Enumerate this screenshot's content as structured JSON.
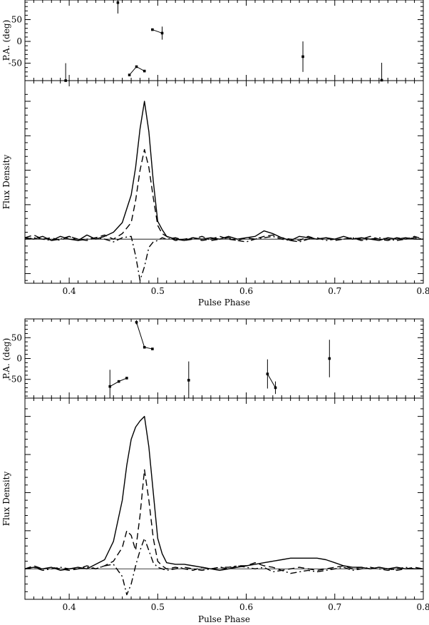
{
  "chart_data": [
    {
      "type": "line",
      "title": "",
      "xlabel": "Pulse Phase",
      "xlim": [
        0.35,
        0.8
      ],
      "x_ticks": [
        "0.4",
        "0.5",
        "0.6",
        "0.7",
        "0.8"
      ],
      "pa_panel": {
        "ylabel": "P.A. (deg)",
        "ylim": [
          -90,
          95
        ],
        "y_ticks": [
          "50",
          "0",
          "-50"
        ],
        "groups": [
          [
            {
              "x": 0.396,
              "y": -90,
              "err": 40
            }
          ],
          [
            {
              "x": 0.455,
              "y": 89,
              "err": 25
            }
          ],
          [
            {
              "x": 0.468,
              "y": -77,
              "err": 0
            },
            {
              "x": 0.476,
              "y": -58,
              "err": 0
            },
            {
              "x": 0.485,
              "y": -68,
              "err": 0
            }
          ],
          [
            {
              "x": 0.494,
              "y": 27,
              "err": 0
            },
            {
              "x": 0.505,
              "y": 19,
              "err": 15
            }
          ],
          [
            {
              "x": 0.664,
              "y": -35,
              "err": 35
            }
          ],
          [
            {
              "x": 0.753,
              "y": -89,
              "err": 40
            }
          ]
        ]
      },
      "flux_panel": {
        "ylabel": "Flux Density",
        "ylim": [
          -0.32,
          1.15
        ],
        "series": [
          {
            "style": "solid",
            "x": [
              0.35,
              0.36,
              0.37,
              0.38,
              0.39,
              0.4,
              0.41,
              0.42,
              0.43,
              0.44,
              0.45,
              0.46,
              0.47,
              0.475,
              0.48,
              0.485,
              0.49,
              0.495,
              0.5,
              0.505,
              0.51,
              0.52,
              0.53,
              0.54,
              0.55,
              0.56,
              0.57,
              0.58,
              0.59,
              0.6,
              0.61,
              0.62,
              0.63,
              0.64,
              0.65,
              0.66,
              0.67,
              0.68,
              0.69,
              0.7,
              0.71,
              0.72,
              0.73,
              0.74,
              0.75,
              0.76,
              0.77,
              0.78,
              0.79,
              0.8
            ],
            "y": [
              0.01,
              0,
              0.02,
              -0.01,
              0.02,
              0,
              -0.01,
              0.03,
              0,
              0.02,
              0.05,
              0.12,
              0.32,
              0.52,
              0.8,
              1.0,
              0.78,
              0.42,
              0.13,
              0.07,
              0.02,
              0,
              -0.01,
              0.01,
              0,
              0.01,
              0,
              0.02,
              0,
              0.01,
              0.02,
              0.06,
              0.04,
              0.01,
              -0.01,
              0.02,
              0.01,
              0,
              0.01,
              0,
              0.02,
              0,
              0.01,
              0,
              -0.01,
              0.01,
              0,
              0.01,
              0,
              0
            ]
          },
          {
            "style": "dashed",
            "x": [
              0.35,
              0.36,
              0.37,
              0.38,
              0.39,
              0.4,
              0.41,
              0.42,
              0.43,
              0.44,
              0.45,
              0.46,
              0.47,
              0.475,
              0.48,
              0.485,
              0.49,
              0.495,
              0.5,
              0.505,
              0.51,
              0.52,
              0.53,
              0.54,
              0.55,
              0.56,
              0.57,
              0.58,
              0.59,
              0.6,
              0.61,
              0.62,
              0.63,
              0.64,
              0.65,
              0.66,
              0.67,
              0.68,
              0.69,
              0.7,
              0.71,
              0.72,
              0.73,
              0.74,
              0.75,
              0.76,
              0.77,
              0.78,
              0.79,
              0.8
            ],
            "y": [
              0.01,
              0.03,
              0,
              0.01,
              -0.01,
              0.02,
              0,
              -0.01,
              0.01,
              0.03,
              0,
              0.04,
              0.12,
              0.28,
              0.5,
              0.65,
              0.52,
              0.3,
              0.1,
              0.04,
              0.02,
              -0.01,
              0,
              0.01,
              -0.01,
              0,
              0.02,
              0,
              -0.01,
              0.01,
              0,
              0.02,
              0.03,
              0.01,
              0,
              -0.01,
              0.02,
              0,
              0.01,
              -0.01,
              0,
              0.01,
              0,
              0.02,
              0,
              -0.01,
              0.01,
              0,
              0.02,
              0
            ]
          },
          {
            "style": "dashdot",
            "x": [
              0.35,
              0.36,
              0.37,
              0.38,
              0.39,
              0.4,
              0.41,
              0.42,
              0.43,
              0.44,
              0.45,
              0.46,
              0.47,
              0.475,
              0.48,
              0.485,
              0.49,
              0.495,
              0.5,
              0.505,
              0.51,
              0.52,
              0.53,
              0.54,
              0.55,
              0.56,
              0.57,
              0.58,
              0.59,
              0.6,
              0.61,
              0.62,
              0.63,
              0.64,
              0.65,
              0.66,
              0.67,
              0.68,
              0.69,
              0.7,
              0.71,
              0.72,
              0.73,
              0.74,
              0.75,
              0.76,
              0.77,
              0.78,
              0.79,
              0.8
            ],
            "y": [
              0,
              0.01,
              0,
              -0.01,
              0,
              0.02,
              -0.01,
              0,
              0.01,
              0,
              -0.02,
              0.01,
              0.02,
              -0.12,
              -0.3,
              -0.2,
              -0.06,
              -0.02,
              -0.01,
              0.01,
              0,
              0.01,
              -0.01,
              0,
              0.02,
              -0.01,
              0,
              0.01,
              -0.01,
              -0.02,
              0,
              0.01,
              0.02,
              0,
              -0.01,
              -0.02,
              0,
              0.01,
              -0.01,
              0,
              0,
              0.01,
              -0.01,
              0,
              0.01,
              0,
              -0.01,
              0,
              0.01,
              0
            ]
          }
        ]
      }
    },
    {
      "type": "line",
      "title": "",
      "xlabel": "Pulse Phase",
      "xlim": [
        0.35,
        0.8
      ],
      "x_ticks": [
        "0.4",
        "0.5",
        "0.6",
        "0.7",
        "0.8"
      ],
      "pa_panel": {
        "ylabel": "P.A. (deg)",
        "ylim": [
          -95,
          95
        ],
        "y_ticks": [
          "50",
          "0",
          "-50"
        ],
        "groups": [
          [
            {
              "x": 0.446,
              "y": -67,
              "err": 40
            },
            {
              "x": 0.456,
              "y": -55,
              "err": 0
            },
            {
              "x": 0.465,
              "y": -47,
              "err": 0
            }
          ],
          [
            {
              "x": 0.476,
              "y": 87,
              "err": 5
            },
            {
              "x": 0.485,
              "y": 27,
              "err": 0
            },
            {
              "x": 0.494,
              "y": 23,
              "err": 0
            }
          ],
          [
            {
              "x": 0.535,
              "y": -52,
              "err": 45
            }
          ],
          [
            {
              "x": 0.624,
              "y": -37,
              "err": 35
            },
            {
              "x": 0.633,
              "y": -70,
              "err": 15
            }
          ],
          [
            {
              "x": 0.694,
              "y": 0,
              "err": 45
            }
          ]
        ]
      },
      "flux_panel": {
        "ylabel": "Flux Density",
        "ylim": [
          -0.2,
          1.12
        ],
        "series": [
          {
            "style": "solid",
            "x": [
              0.35,
              0.36,
              0.37,
              0.38,
              0.39,
              0.4,
              0.41,
              0.42,
              0.43,
              0.44,
              0.45,
              0.46,
              0.465,
              0.47,
              0.475,
              0.48,
              0.485,
              0.49,
              0.495,
              0.5,
              0.505,
              0.51,
              0.52,
              0.53,
              0.54,
              0.55,
              0.56,
              0.57,
              0.58,
              0.59,
              0.6,
              0.61,
              0.62,
              0.63,
              0.64,
              0.65,
              0.66,
              0.67,
              0.68,
              0.69,
              0.7,
              0.71,
              0.72,
              0.73,
              0.74,
              0.75,
              0.76,
              0.77,
              0.78,
              0.79,
              0.8
            ],
            "y": [
              0,
              0.01,
              0,
              0.01,
              -0.01,
              0,
              0.01,
              0,
              0.03,
              0.06,
              0.18,
              0.45,
              0.68,
              0.85,
              0.93,
              0.97,
              1.0,
              0.8,
              0.5,
              0.2,
              0.1,
              0.04,
              0.03,
              0.03,
              0.02,
              0.01,
              0,
              -0.01,
              0,
              0.01,
              0.02,
              0.03,
              0.04,
              0.05,
              0.06,
              0.07,
              0.07,
              0.07,
              0.07,
              0.06,
              0.04,
              0.02,
              0.01,
              0.01,
              0,
              0.01,
              0,
              0.01,
              0,
              0,
              0
            ]
          },
          {
            "style": "dashed",
            "x": [
              0.35,
              0.36,
              0.37,
              0.38,
              0.39,
              0.4,
              0.41,
              0.42,
              0.43,
              0.44,
              0.45,
              0.46,
              0.465,
              0.47,
              0.475,
              0.48,
              0.485,
              0.49,
              0.495,
              0.5,
              0.505,
              0.51,
              0.52,
              0.53,
              0.54,
              0.55,
              0.56,
              0.57,
              0.58,
              0.59,
              0.6,
              0.61,
              0.62,
              0.63,
              0.64,
              0.65,
              0.66,
              0.67,
              0.68,
              0.69,
              0.7,
              0.71,
              0.72,
              0.73,
              0.74,
              0.75,
              0.76,
              0.77,
              0.78,
              0.79,
              0.8
            ],
            "y": [
              0,
              0.02,
              0,
              0.01,
              0,
              -0.01,
              0,
              0.02,
              0,
              0.02,
              0.05,
              0.14,
              0.25,
              0.22,
              0.12,
              0.35,
              0.65,
              0.45,
              0.2,
              0.05,
              0.02,
              0,
              0.01,
              0,
              -0.01,
              0.01,
              0,
              0.01,
              0,
              0.02,
              0.02,
              0.04,
              0.02,
              0.01,
              -0.01,
              0,
              0.01,
              0,
              -0.01,
              0,
              0.01,
              0.02,
              0,
              0.01,
              0,
              0.01,
              0,
              -0.01,
              0,
              0.01,
              0
            ]
          },
          {
            "style": "dashdot",
            "x": [
              0.35,
              0.36,
              0.37,
              0.38,
              0.39,
              0.4,
              0.41,
              0.42,
              0.43,
              0.44,
              0.45,
              0.46,
              0.465,
              0.47,
              0.475,
              0.48,
              0.485,
              0.49,
              0.495,
              0.5,
              0.505,
              0.51,
              0.52,
              0.53,
              0.54,
              0.55,
              0.56,
              0.57,
              0.58,
              0.59,
              0.6,
              0.61,
              0.62,
              0.63,
              0.64,
              0.65,
              0.66,
              0.67,
              0.68,
              0.69,
              0.7,
              0.71,
              0.72,
              0.73,
              0.74,
              0.75,
              0.76,
              0.77,
              0.78,
              0.79,
              0.8
            ],
            "y": [
              0,
              0.01,
              -0.01,
              0,
              0.01,
              0,
              0,
              0.01,
              0,
              0.02,
              0.03,
              -0.05,
              -0.17,
              -0.1,
              0.02,
              0.12,
              0.2,
              0.12,
              0.04,
              0.01,
              0,
              -0.01,
              0,
              0.01,
              0,
              -0.01,
              0,
              0.01,
              0.01,
              0.02,
              0.01,
              0,
              0.01,
              -0.02,
              -0.01,
              -0.03,
              -0.02,
              -0.01,
              -0.02,
              -0.01,
              0,
              0.01,
              -0.01,
              0,
              0.01,
              0,
              -0.01,
              0,
              0.01,
              0,
              0
            ]
          }
        ]
      }
    }
  ]
}
